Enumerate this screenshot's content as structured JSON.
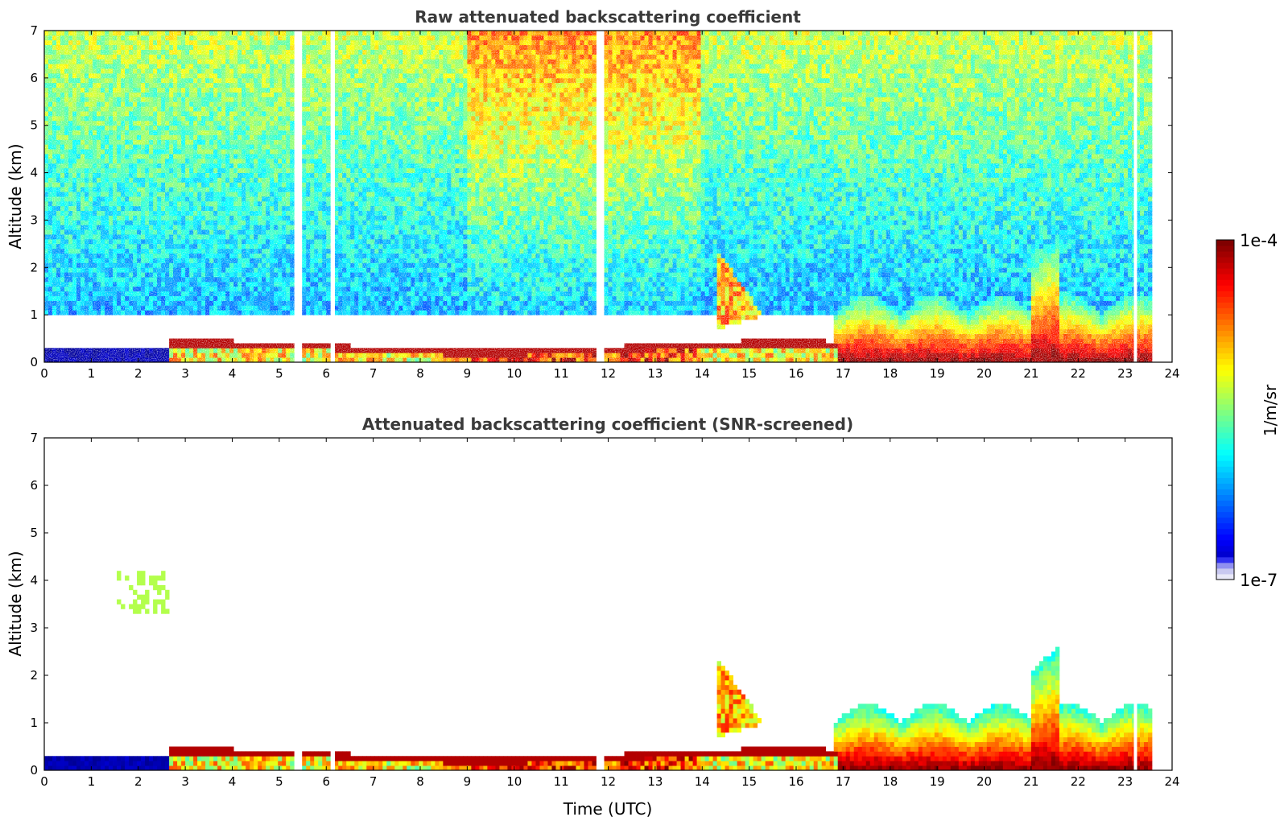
{
  "figure": {
    "colorbar": {
      "label": "1/m/sr",
      "tick_labels": [
        "1e-4",
        "1e-7"
      ],
      "range": [
        1e-07,
        0.0001
      ],
      "scale": "log",
      "colormap": "jet",
      "colors": [
        "#e8e8f8",
        "#c8c8f0",
        "#9090f0",
        "#3030f0",
        "#0000ff",
        "#0040ff",
        "#0080ff",
        "#00c0ff",
        "#00ffff",
        "#40ffc0",
        "#80ff80",
        "#c0ff40",
        "#ffff00",
        "#ffc000",
        "#ff8000",
        "#ff4000",
        "#ff0000",
        "#c00000",
        "#800000"
      ]
    }
  },
  "chart_data": [
    {
      "type": "heatmap",
      "title": "Raw attenuated backscattering coefficient",
      "xlabel": "",
      "ylabel": "Altitude (km)",
      "xlim": [
        0,
        24
      ],
      "ylim": [
        0,
        7
      ],
      "xticks": [
        "0",
        "1",
        "2",
        "3",
        "4",
        "5",
        "6",
        "7",
        "8",
        "9",
        "10",
        "11",
        "12",
        "13",
        "14",
        "15",
        "16",
        "17",
        "18",
        "19",
        "20",
        "21",
        "22",
        "23",
        "24"
      ],
      "yticks": [
        "0",
        "1",
        "2",
        "3",
        "4",
        "5",
        "6",
        "7"
      ],
      "data_end_time": 23.55,
      "features": [
        {
          "name": "near-surface layer",
          "t_start": 0,
          "t_end": 2.7,
          "alt_top": 0.3,
          "level": "low"
        },
        {
          "name": "boundary layer top",
          "t_start": 2.7,
          "t_end": 16.9,
          "alt_top": 0.42,
          "level": "high"
        },
        {
          "name": "elevated cloud",
          "t_start": 14.3,
          "t_end": 15.3,
          "alt_bottom": 0.7,
          "alt_top": 2.3,
          "level": "high"
        },
        {
          "name": "aerosol layer",
          "t_start": 16.8,
          "t_end": 23.55,
          "alt_top": 1.5,
          "level": "high"
        },
        {
          "name": "plume",
          "t_start": 21.0,
          "t_end": 21.6,
          "alt_top": 2.6,
          "level": "very high"
        },
        {
          "name": "noise aloft",
          "t_start": 0,
          "t_end": 23.55,
          "alt_bottom": 1.0,
          "alt_top": 7.0,
          "level": "noisy"
        }
      ]
    },
    {
      "type": "heatmap",
      "title": "Attenuated backscattering coefficient (SNR-screened)",
      "xlabel": "Time (UTC)",
      "ylabel": "Altitude (km)",
      "xlim": [
        0,
        24
      ],
      "ylim": [
        0,
        7
      ],
      "xticks": [
        "0",
        "1",
        "2",
        "3",
        "4",
        "5",
        "6",
        "7",
        "8",
        "9",
        "10",
        "11",
        "12",
        "13",
        "14",
        "15",
        "16",
        "17",
        "18",
        "19",
        "20",
        "21",
        "22",
        "23",
        "24"
      ],
      "yticks": [
        "0",
        "1",
        "2",
        "3",
        "4",
        "5",
        "6",
        "7"
      ],
      "data_end_time": 23.55,
      "features": [
        {
          "name": "near-surface layer",
          "t_start": 0,
          "t_end": 2.7,
          "alt_top": 0.3,
          "level": "low"
        },
        {
          "name": "boundary layer top",
          "t_start": 2.7,
          "t_end": 16.9,
          "alt_top": 0.42,
          "level": "high"
        },
        {
          "name": "elevated cloud",
          "t_start": 14.3,
          "t_end": 15.3,
          "alt_bottom": 0.7,
          "alt_top": 2.4,
          "level": "high"
        },
        {
          "name": "aerosol layer",
          "t_start": 16.8,
          "t_end": 23.55,
          "alt_top": 1.5,
          "level": "high"
        },
        {
          "name": "plume",
          "t_start": 21.0,
          "t_end": 21.6,
          "alt_top": 2.9,
          "level": "very high"
        },
        {
          "name": "thin layer",
          "t_start": 1.5,
          "t_end": 2.7,
          "alt_bottom": 3.3,
          "alt_top": 4.2,
          "level": "mid"
        }
      ]
    }
  ]
}
